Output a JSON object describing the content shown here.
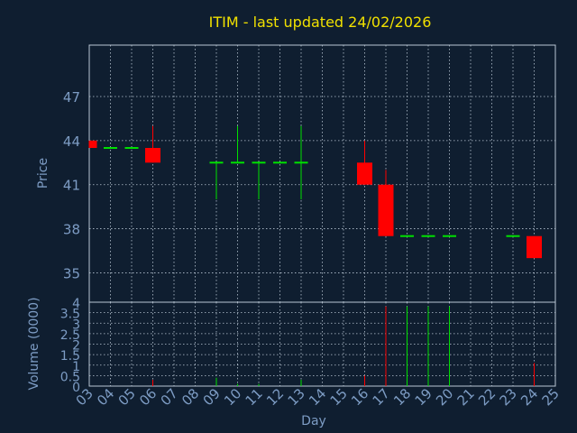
{
  "chart_data": {
    "type": "candlestick",
    "title": "ITIM - last updated 24/02/2026",
    "xlabel": "Day",
    "price_panel": {
      "ylabel": "Price",
      "ylim": [
        33,
        50.5
      ],
      "yticks": [
        35,
        38,
        41,
        44,
        47
      ],
      "grid": true
    },
    "volume_panel": {
      "ylabel": "Volume (0000)",
      "ylim": [
        0,
        4
      ],
      "yticks": [
        0,
        0.5,
        1,
        1.5,
        2,
        2.5,
        3,
        3.5,
        4
      ],
      "ytick_labels": [
        "0",
        "0.5",
        "1",
        "1.5",
        "2",
        "2.5",
        "3",
        "3.5",
        "4"
      ],
      "grid": true
    },
    "x_ticks": [
      "03",
      "04",
      "05",
      "06",
      "07",
      "08",
      "09",
      "10",
      "11",
      "12",
      "13",
      "14",
      "15",
      "16",
      "17",
      "18",
      "19",
      "20",
      "21",
      "22",
      "23",
      "24",
      "25"
    ],
    "candles": [
      {
        "day": "03",
        "open": 44.0,
        "high": 44.0,
        "low": 43.5,
        "close": 43.5,
        "volume": 0.0
      },
      {
        "day": "04",
        "open": 43.5,
        "high": 43.5,
        "low": 43.5,
        "close": 43.5,
        "volume": 0.0
      },
      {
        "day": "05",
        "open": 43.5,
        "high": 43.5,
        "low": 43.5,
        "close": 43.5,
        "volume": 0.0
      },
      {
        "day": "06",
        "open": 43.5,
        "high": 45.0,
        "low": 42.5,
        "close": 42.5,
        "volume": 0.3
      },
      {
        "day": "09",
        "open": 42.5,
        "high": 42.5,
        "low": 40.0,
        "close": 42.5,
        "volume": 0.4
      },
      {
        "day": "10",
        "open": 42.5,
        "high": 45.0,
        "low": 42.5,
        "close": 42.5,
        "volume": 0.1
      },
      {
        "day": "11",
        "open": 42.5,
        "high": 42.5,
        "low": 40.0,
        "close": 42.5,
        "volume": 0.1
      },
      {
        "day": "12",
        "open": 42.5,
        "high": 42.5,
        "low": 42.5,
        "close": 42.5,
        "volume": 0.0
      },
      {
        "day": "13",
        "open": 42.5,
        "high": 45.0,
        "low": 40.0,
        "close": 42.5,
        "volume": 0.3
      },
      {
        "day": "16",
        "open": 42.5,
        "high": 44.0,
        "low": 41.0,
        "close": 41.0,
        "volume": 0.5
      },
      {
        "day": "17",
        "open": 41.0,
        "high": 42.0,
        "low": 37.5,
        "close": 37.5,
        "volume": 3.8
      },
      {
        "day": "18",
        "open": 37.5,
        "high": 37.5,
        "low": 37.5,
        "close": 37.5,
        "volume": 3.8
      },
      {
        "day": "19",
        "open": 37.5,
        "high": 37.5,
        "low": 37.5,
        "close": 37.5,
        "volume": 3.8
      },
      {
        "day": "20",
        "open": 37.5,
        "high": 37.5,
        "low": 37.5,
        "close": 37.5,
        "volume": 3.8
      },
      {
        "day": "23",
        "open": 37.5,
        "high": 37.5,
        "low": 37.5,
        "close": 37.5,
        "volume": 0.0
      },
      {
        "day": "24",
        "open": 37.5,
        "high": 37.5,
        "low": 36.0,
        "close": 36.0,
        "volume": 1.1
      }
    ],
    "colors": {
      "background": "#0f1e30",
      "grid": "#b9c6d4",
      "axis_text": "#7d9cc4",
      "title": "#f0e000",
      "up": "#00e000",
      "down": "#ff0000"
    }
  }
}
